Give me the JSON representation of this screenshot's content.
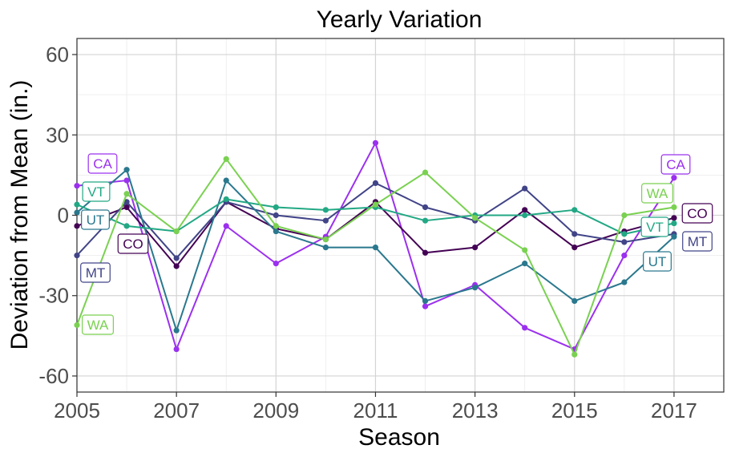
{
  "chart_data": {
    "type": "line",
    "title": "Yearly Variation",
    "xlabel": "Season",
    "ylabel": "Deviation from Mean (in.)",
    "xlim": [
      2005,
      2018
    ],
    "ylim": [
      -66,
      66
    ],
    "x_ticks": [
      2005,
      2007,
      2009,
      2011,
      2013,
      2015,
      2017
    ],
    "y_ticks": [
      -60,
      -30,
      0,
      30,
      60
    ],
    "x_tick_labels": [
      "2005",
      "2007",
      "2009",
      "2011",
      "2013",
      "2015",
      "2017"
    ],
    "y_tick_labels": [
      "-60",
      "-30",
      "0",
      "30",
      "60"
    ],
    "grid": true,
    "legend": "none (direct labels)",
    "x": [
      2005,
      2006,
      2007,
      2008,
      2009,
      2010,
      2011,
      2012,
      2013,
      2014,
      2015,
      2016,
      2017
    ],
    "series": [
      {
        "name": "CA",
        "color": "#9b30ef",
        "values": [
          11,
          13,
          -50,
          -4,
          -18,
          -8,
          27,
          -34,
          -26,
          -42,
          -50,
          -15,
          14
        ]
      },
      {
        "name": "CO",
        "color": "#440154",
        "values": [
          -4,
          3,
          -19,
          5,
          -5,
          -9,
          5,
          -14,
          -12,
          2,
          -12,
          -6,
          -1
        ]
      },
      {
        "name": "MT",
        "color": "#414487",
        "values": [
          -15,
          5,
          -16,
          5,
          0,
          -2,
          12,
          3,
          -2,
          10,
          -7,
          -10,
          -7
        ]
      },
      {
        "name": "UT",
        "color": "#2a788e",
        "values": [
          1,
          17,
          -43,
          13,
          -6,
          -12,
          -12,
          -32,
          -27,
          -18,
          -32,
          -25,
          -8
        ]
      },
      {
        "name": "VT",
        "color": "#22a884",
        "values": [
          4,
          -4,
          -6,
          6,
          3,
          2,
          3,
          -2,
          0,
          0,
          2,
          -7,
          -3
        ]
      },
      {
        "name": "WA",
        "color": "#7ad151",
        "values": [
          -41,
          8,
          -6,
          21,
          -4,
          -9,
          4,
          16,
          -1,
          -13,
          -52,
          0,
          3
        ]
      }
    ],
    "labels": [
      {
        "series": "CA",
        "text": "CA"
      },
      {
        "series": "VT",
        "text": "VT"
      },
      {
        "series": "UT",
        "text": "UT"
      },
      {
        "series": "CO",
        "text": "CO"
      },
      {
        "series": "MT",
        "text": "MT"
      },
      {
        "series": "WA",
        "text": "WA"
      },
      {
        "series": "CA",
        "text": "CA"
      },
      {
        "series": "WA",
        "text": "WA"
      },
      {
        "series": "CO",
        "text": "CO"
      },
      {
        "series": "VT",
        "text": "VT"
      },
      {
        "series": "MT",
        "text": "MT"
      },
      {
        "series": "UT",
        "text": "UT"
      }
    ]
  }
}
